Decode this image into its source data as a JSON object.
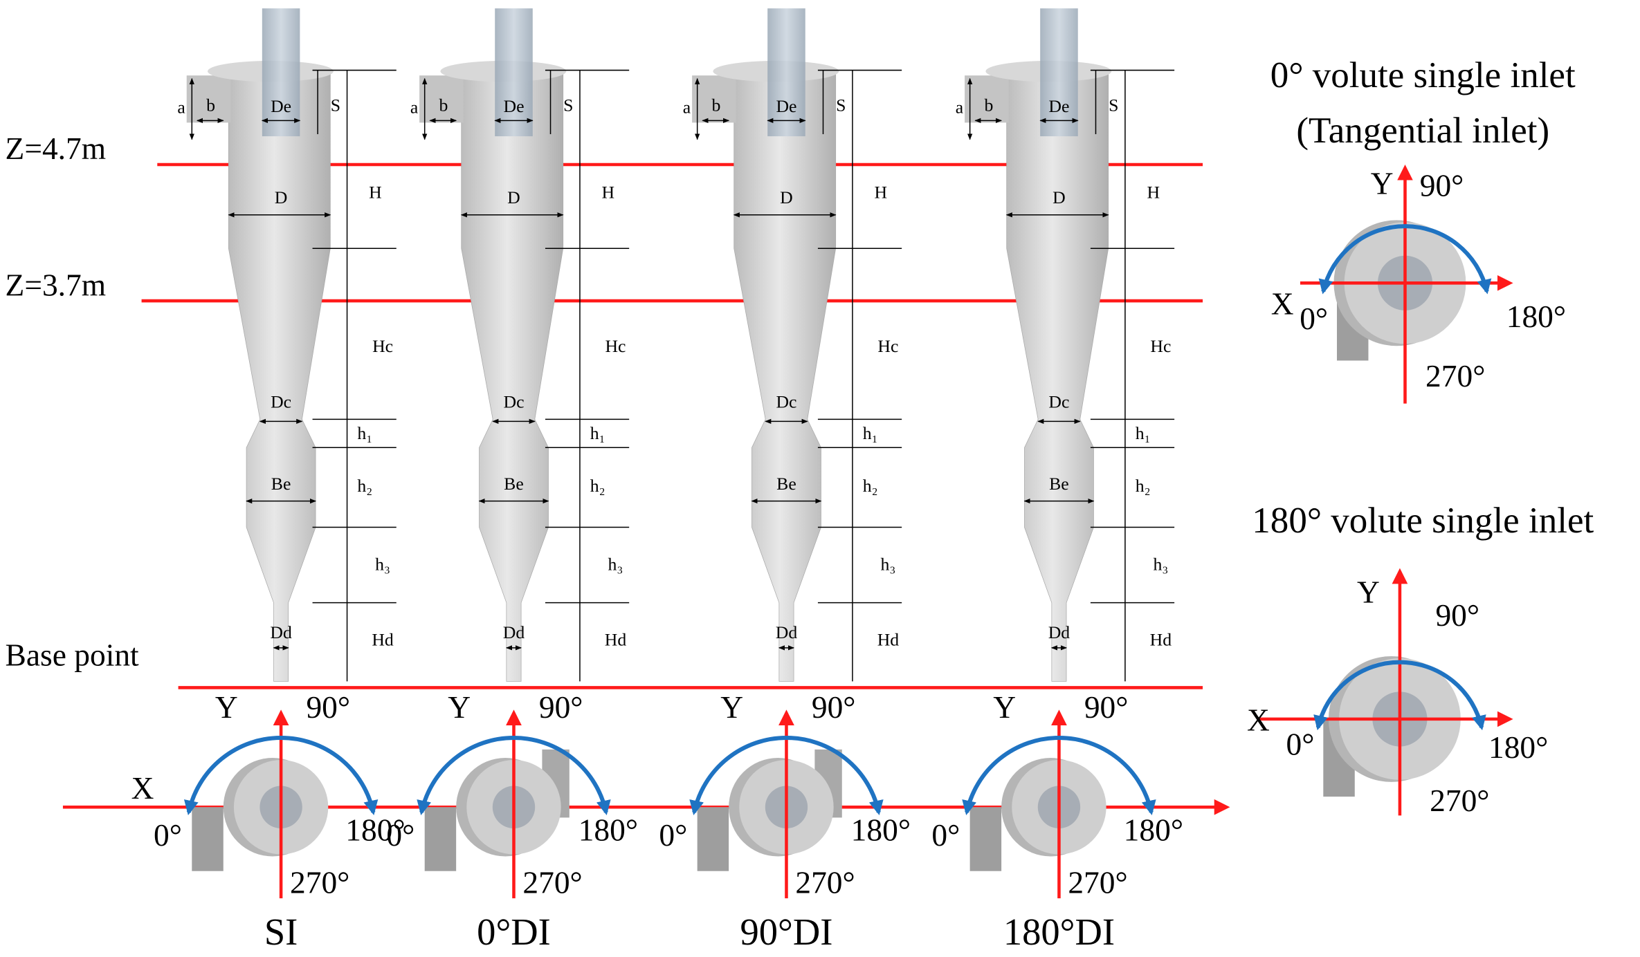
{
  "levels": [
    "Z=4.7m",
    "Z=3.7m",
    "Base point"
  ],
  "cyclones": [
    {
      "name": "SI",
      "dims": {
        "a": "a",
        "b": "b",
        "De": "De",
        "S": "S",
        "D": "D",
        "H": "H",
        "Hc": "Hc",
        "Dc": "Dc",
        "h1": "h₁",
        "Be": "Be",
        "h2": "h₂",
        "h3": "h₃",
        "Dd": "Dd",
        "Hd": "Hd"
      },
      "axes": {
        "x": "X",
        "y": "Y",
        "a90": "90°",
        "a0": "0°",
        "a180": "180°",
        "a270": "270°"
      }
    },
    {
      "name": "0°DI",
      "dims": {
        "a": "a",
        "b": "b",
        "De": "De",
        "S": "S",
        "D": "D",
        "H": "H",
        "Hc": "Hc",
        "Dc": "Dc",
        "h1": "h₁",
        "Be": "Be",
        "h2": "h₂",
        "h3": "h₃",
        "Dd": "Dd",
        "Hd": "Hd"
      },
      "axes": {
        "y": "Y",
        "a90": "90°",
        "a0": "0°",
        "a180": "180°",
        "a270": "270°"
      }
    },
    {
      "name": "90°DI",
      "dims": {
        "a": "a",
        "b": "b",
        "De": "De",
        "S": "S",
        "D": "D",
        "H": "H",
        "Hc": "Hc",
        "Dc": "Dc",
        "h1": "h₁",
        "Be": "Be",
        "h2": "h₂",
        "h3": "h₃",
        "Dd": "Dd",
        "Hd": "Hd"
      },
      "axes": {
        "y": "Y",
        "a90": "90°",
        "a0": "0°",
        "a180": "180°",
        "a270": "270°"
      }
    },
    {
      "name": "180°DI",
      "dims": {
        "a": "a",
        "b": "b",
        "De": "De",
        "S": "S",
        "D": "D",
        "H": "H",
        "Hc": "Hc",
        "Dc": "Dc",
        "h1": "h₁",
        "Be": "Be",
        "h2": "h₂",
        "h3": "h₃",
        "Dd": "Dd",
        "Hd": "Hd"
      },
      "axes": {
        "y": "Y",
        "a90": "90°",
        "a0": "0°",
        "a180": "180°",
        "a270": "270°"
      }
    }
  ],
  "insets": [
    {
      "title": [
        "0° volute single inlet",
        "(Tangential inlet)"
      ],
      "axes": {
        "x": "X",
        "y": "Y",
        "a90": "90°",
        "a0": "0°",
        "a180": "180°",
        "a270": "270°"
      }
    },
    {
      "title": [
        "180° volute single inlet"
      ],
      "axes": {
        "x": "X",
        "y": "Y",
        "a90": "90°",
        "a0": "0°",
        "a180": "180°",
        "a270": "270°"
      }
    }
  ]
}
